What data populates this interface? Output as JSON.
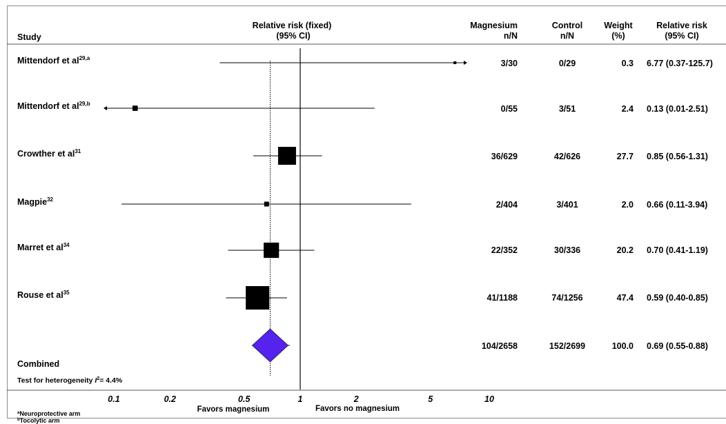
{
  "headers": {
    "study": "Study",
    "rr_fixed_1": "Relative risk (fixed)",
    "rr_fixed_2": "(95% CI)",
    "magnesium_1": "Magnesium",
    "magnesium_2": "n/N",
    "control_1": "Control",
    "control_2": "n/N",
    "weight_1": "Weight",
    "weight_2": "(%)",
    "rr_1": "Relative risk",
    "rr_2": "(95% CI)"
  },
  "heterogeneity": {
    "prefix": "Test for heterogeneity ",
    "symbol": "I",
    "exp": "2",
    "suffix": "= 4.4%"
  },
  "favors": {
    "left": "Favors magnesium",
    "right": "Favors no magnesium"
  },
  "footnotes": [
    {
      "mark": "a",
      "text": "Neuroprotective arm"
    },
    {
      "mark": "b",
      "text": "Tocolytic arm"
    }
  ],
  "chart_data": {
    "type": "forest",
    "x_scale": "log",
    "xlim": [
      0.05,
      10
    ],
    "ticks": [
      {
        "value": 0.1,
        "label": "0.1"
      },
      {
        "value": 0.2,
        "label": "0.2"
      },
      {
        "value": 0.5,
        "label": "0.5"
      },
      {
        "value": 1,
        "label": "1"
      },
      {
        "value": 2,
        "label": "2"
      },
      {
        "value": 5,
        "label": "5"
      },
      {
        "value": 10,
        "label": "10"
      }
    ],
    "reference_line": 1,
    "pooled_line": 0.69,
    "studies": [
      {
        "name": "Mittendorf et al",
        "sup": "29,a",
        "magnesium": "3/30",
        "control": "0/29",
        "weight": "0.3",
        "rr_text": "6.77 (0.37-125.7)",
        "rr": 6.77,
        "lo": 0.37,
        "hi": 125.7
      },
      {
        "name": "Mittendorf et al",
        "sup": "29,b",
        "magnesium": "0/55",
        "control": "3/51",
        "weight": "2.4",
        "rr_text": "0.13 (0.01-2.51)",
        "rr": 0.13,
        "lo": 0.01,
        "hi": 2.51
      },
      {
        "name": "Crowther et al",
        "sup": "31",
        "magnesium": "36/629",
        "control": "42/626",
        "weight": "27.7",
        "rr_text": "0.85 (0.56-1.31)",
        "rr": 0.85,
        "lo": 0.56,
        "hi": 1.31
      },
      {
        "name": "Magpie",
        "sup": "32",
        "magnesium": "2/404",
        "control": "3/401",
        "weight": "2.0",
        "rr_text": "0.66 (0.11-3.94)",
        "rr": 0.66,
        "lo": 0.11,
        "hi": 3.94
      },
      {
        "name": "Marret et al",
        "sup": "34",
        "magnesium": "22/352",
        "control": "30/336",
        "weight": "20.2",
        "rr_text": "0.70 (0.41-1.19)",
        "rr": 0.7,
        "lo": 0.41,
        "hi": 1.19
      },
      {
        "name": "Rouse et al",
        "sup": "35",
        "magnesium": "41/1188",
        "control": "74/1256",
        "weight": "47.4",
        "rr_text": "0.59 (0.40-0.85)",
        "rr": 0.59,
        "lo": 0.4,
        "hi": 0.85
      }
    ],
    "combined": {
      "name": "Combined",
      "magnesium": "104/2658",
      "control": "152/2699",
      "weight": "100.0",
      "rr_text": "0.69 (0.55-0.88)",
      "rr": 0.69,
      "lo": 0.55,
      "hi": 0.88
    },
    "colors": {
      "marker": "#000000",
      "diamond": "#5522ee",
      "diamond_stroke": "#222222"
    }
  }
}
